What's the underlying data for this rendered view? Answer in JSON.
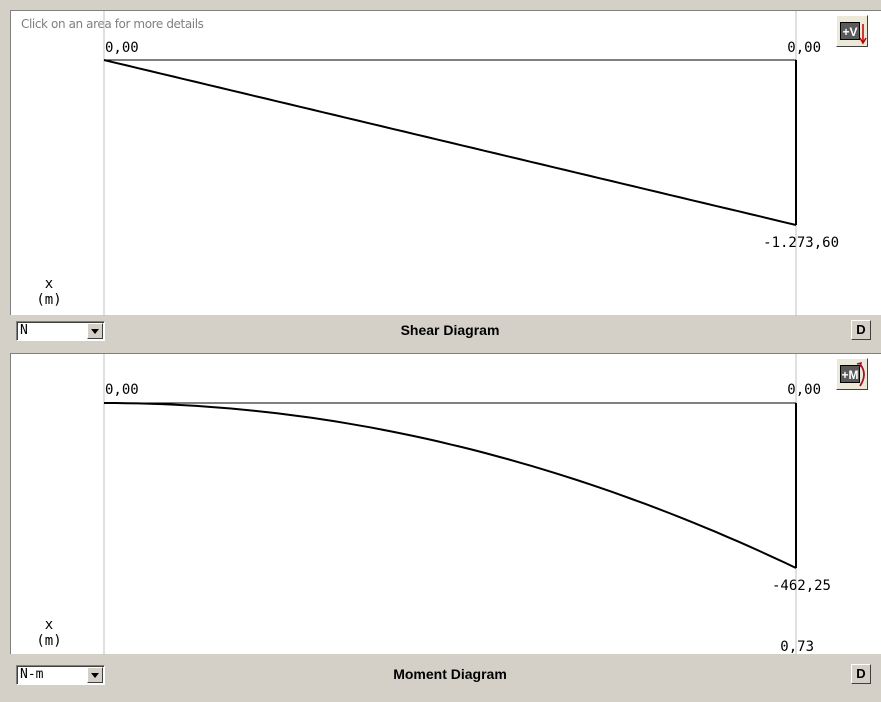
{
  "hint": "Click on an area for more details",
  "chart_data": [
    {
      "type": "line",
      "title": "Shear Diagram",
      "unit": "N",
      "axis_label_x": "x",
      "axis_label_unit": "(m)",
      "x": [
        0,
        0.73
      ],
      "values": [
        0,
        -1273.6
      ],
      "labels": {
        "start": "0,00",
        "end_top": "0,00",
        "end": "-1.273,60"
      },
      "curve": "linear",
      "sign_button": "+V"
    },
    {
      "type": "line",
      "title": "Moment Diagram",
      "unit": "N-m",
      "axis_label_x": "x",
      "axis_label_unit": "(m)",
      "x": [
        0,
        0.73
      ],
      "values": [
        0,
        -462.25
      ],
      "labels": {
        "start": "0,00",
        "end_top": "0,00",
        "end": "-462,25",
        "x_end": "0,73"
      },
      "curve": "parabolic",
      "sign_button": "+M"
    }
  ],
  "toolbar": {
    "d_label": "D"
  }
}
